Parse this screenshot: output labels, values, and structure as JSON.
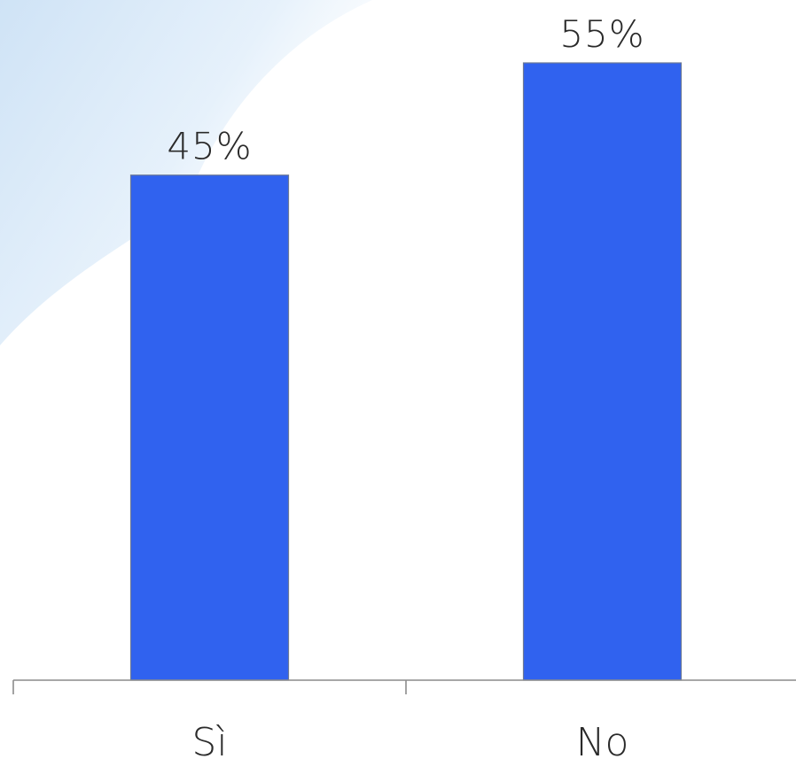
{
  "chart_data": {
    "type": "bar",
    "categories": [
      "Sì",
      "No"
    ],
    "values": [
      45,
      55
    ],
    "value_labels": [
      "45%",
      "55%"
    ],
    "ylim": [
      0,
      55
    ],
    "grid": false
  },
  "colors": {
    "bar": "#3062EF",
    "bar_edge": "#6B7896",
    "axis": "#8C8C8C",
    "text": "#2a2a2a",
    "background_wash": "#D9EAF9"
  }
}
